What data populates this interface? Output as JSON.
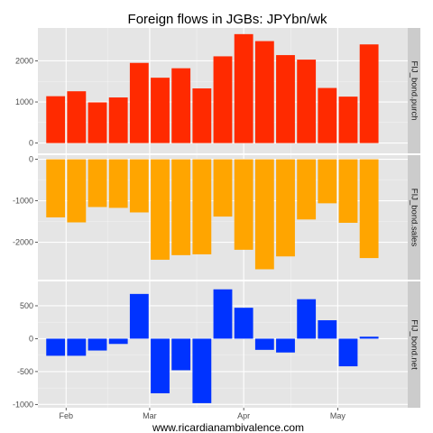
{
  "chart_data": {
    "type": "bar",
    "title": "Foreign flows in JGBs: JPYbn/wk",
    "xlabel": "www.ricardianambivalence.com",
    "x_ticks": [
      "Feb",
      "Mar",
      "Apr",
      "May"
    ],
    "x_tick_positions": [
      0.5,
      4.5,
      9.0,
      13.5
    ],
    "x_range": [
      -0.85,
      16.85
    ],
    "grid": true,
    "colors": {
      "panel_bg": "#e5e5e5",
      "strip_bg": "#cccccc",
      "grid": "#ffffff"
    },
    "panels": [
      {
        "name": "FIJ_bond.purch",
        "color": "#ff2a00",
        "ylim": [
          -250,
          2800
        ],
        "yticks": [
          0,
          1000,
          2000
        ],
        "values": [
          1140,
          1260,
          990,
          1110,
          1950,
          1590,
          1820,
          1330,
          2110,
          2650,
          2480,
          2140,
          2030,
          1340,
          1130,
          2400
        ]
      },
      {
        "name": "FIJ_bond.sales",
        "color": "#ffa500",
        "ylim": [
          -2900,
          100
        ],
        "yticks": [
          -2000,
          -1000,
          0
        ],
        "values": [
          -1400,
          -1520,
          -1150,
          -1170,
          -1280,
          -2420,
          -2310,
          -2290,
          -1380,
          -2180,
          -2650,
          -2340,
          -1450,
          -1060,
          -1530,
          -2380
        ]
      },
      {
        "name": "FIJ_bond.net",
        "color": "#0033ff",
        "ylim": [
          -1050,
          870
        ],
        "yticks": [
          -1000,
          -500,
          0,
          500
        ],
        "values": [
          -260,
          -260,
          -180,
          -80,
          680,
          -830,
          -480,
          -980,
          750,
          470,
          -170,
          -210,
          600,
          280,
          -420,
          30
        ]
      }
    ]
  }
}
